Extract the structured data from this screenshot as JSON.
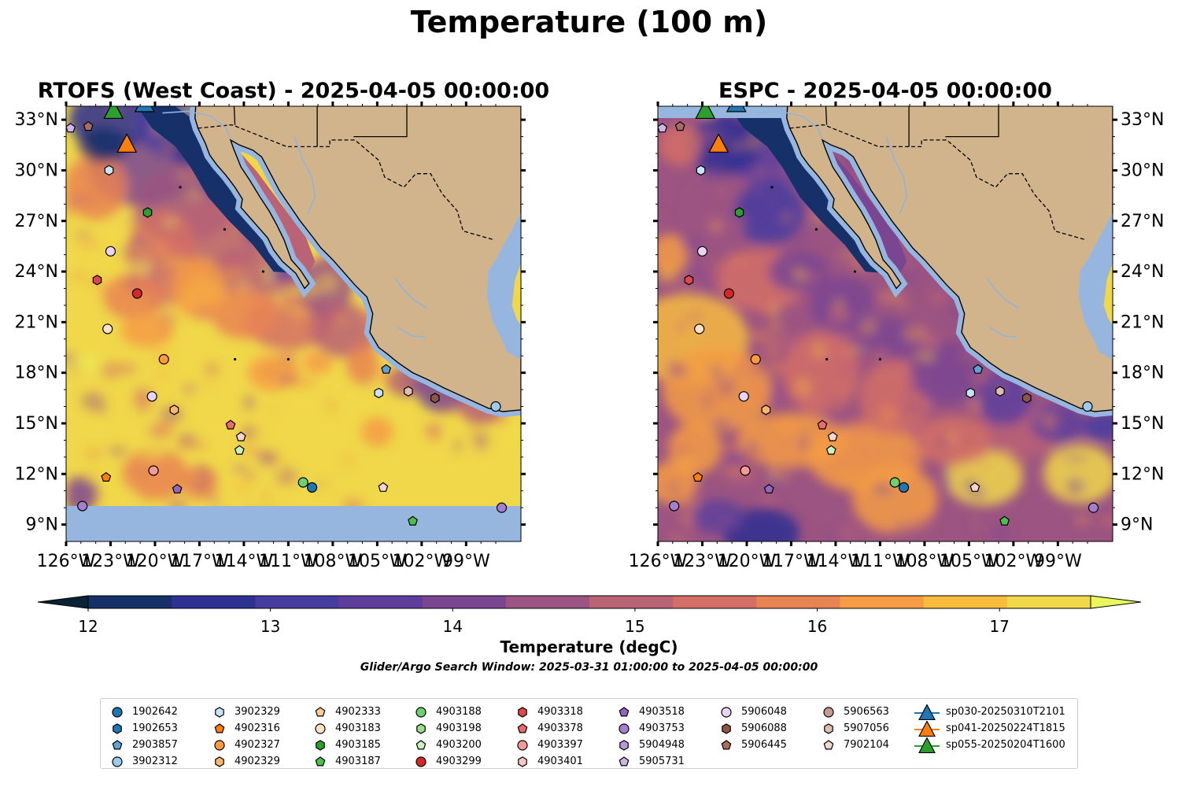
{
  "figure": {
    "title": "Temperature (100 m)"
  },
  "colors": {
    "land": "#d2b48c",
    "nodata": "#96b6e0",
    "rivers": "#8fb4dc",
    "colormap": [
      "#0a2236",
      "#16306a",
      "#2e3092",
      "#463ca0",
      "#5e3e9c",
      "#7a4692",
      "#9c5482",
      "#ba6276",
      "#d46e66",
      "#e98452",
      "#f59c44",
      "#f7bb3e",
      "#f0d84a",
      "#e9f75a"
    ]
  },
  "chart_data": [
    {
      "type": "heatmap",
      "title": "RTOFS (West Coast) - 2025-04-05 00:00:00",
      "xlim": [
        -126,
        -95.3
      ],
      "ylim": [
        8,
        33.8
      ],
      "xticks": [
        "126°W",
        "123°W",
        "120°W",
        "117°W",
        "114°W",
        "111°W",
        "108°W",
        "105°W",
        "102°W",
        "99°W"
      ],
      "yticks": [
        "9°N",
        "12°N",
        "15°N",
        "18°N",
        "21°N",
        "24°N",
        "27°N",
        "30°N",
        "33°N"
      ],
      "ytick_side": "left",
      "nodata_below_lat": 10.1,
      "field_note": "warm (>17) offshore south and west; cool (<13) band along Baja California and the California Current north; intermediate 14-16 near the coast",
      "markers": [
        {
          "id": "5906445",
          "lat": 32.6,
          "lon": -124.5
        },
        {
          "id": "5905731",
          "lat": 32.5,
          "lon": -125.7
        },
        {
          "id": "3902329",
          "lat": 30.0,
          "lon": -123.1
        },
        {
          "id": "4903185",
          "lat": 27.5,
          "lon": -120.5
        },
        {
          "id": "5906048",
          "lat": 25.2,
          "lon": -123.0
        },
        {
          "id": "4903318",
          "lat": 23.5,
          "lon": -123.9
        },
        {
          "id": "4903299",
          "lat": 22.7,
          "lon": -121.2
        },
        {
          "id": "4903183",
          "lat": 20.6,
          "lon": -123.2
        },
        {
          "id": "4902327",
          "lat": 18.8,
          "lon": -119.4
        },
        {
          "id": "5906048",
          "lat": 16.6,
          "lon": -120.2
        },
        {
          "id": "4902329",
          "lat": 15.8,
          "lon": -118.7
        },
        {
          "id": "4903378",
          "lat": 14.9,
          "lon": -114.9
        },
        {
          "id": "7902104",
          "lat": 14.2,
          "lon": -114.2
        },
        {
          "id": "4903200",
          "lat": 13.4,
          "lon": -114.3
        },
        {
          "id": "4902316",
          "lat": 11.8,
          "lon": -123.3
        },
        {
          "id": "4903397",
          "lat": 12.2,
          "lon": -120.1
        },
        {
          "id": "4903518",
          "lat": 11.1,
          "lon": -118.5
        },
        {
          "id": "4903753",
          "lat": 10.1,
          "lon": -124.9
        },
        {
          "id": "4903188",
          "lat": 11.5,
          "lon": -110.0
        },
        {
          "id": "1902642",
          "lat": 11.2,
          "lon": -109.4
        },
        {
          "id": "7902104",
          "lat": 11.2,
          "lon": -104.6
        },
        {
          "id": "4903187",
          "lat": 9.2,
          "lon": -102.6
        },
        {
          "id": "2903857",
          "lat": 18.2,
          "lon": -104.4
        },
        {
          "id": "3902329",
          "lat": 16.8,
          "lon": -104.9
        },
        {
          "id": "5907056",
          "lat": 16.9,
          "lon": -102.9
        },
        {
          "id": "5906088",
          "lat": 16.5,
          "lon": -101.1
        },
        {
          "id": "3902312",
          "lat": 16.0,
          "lon": -97.0
        },
        {
          "id": "4903753",
          "lat": 10.0,
          "lon": -96.6
        }
      ],
      "gliders": [
        {
          "id": "sp055-20250204T1600",
          "lat": 33.5,
          "lon": -122.8
        },
        {
          "id": "sp030-20250310T2101",
          "lat": 33.9,
          "lon": -120.7
        },
        {
          "id": "sp041-20250224T1815",
          "lat": 31.5,
          "lon": -121.9
        }
      ]
    },
    {
      "type": "heatmap",
      "title": "ESPC - 2025-04-05 00:00:00",
      "xlim": [
        -126,
        -95.3
      ],
      "ylim": [
        8,
        33.8
      ],
      "xticks": [
        "126°W",
        "123°W",
        "120°W",
        "117°W",
        "114°W",
        "111°W",
        "108°W",
        "105°W",
        "102°W",
        "99°W"
      ],
      "yticks": [
        "9°N",
        "12°N",
        "15°N",
        "18°N",
        "21°N",
        "24°N",
        "27°N",
        "30°N",
        "33°N"
      ],
      "ytick_side": "right",
      "nodata_above_lat": 33.1,
      "field_note": "cooler overall; broad 14-15 purple band along coast and offshore; warm (>17) patches in southwest and west; cold (<12.5) along Baja and a cold spot near 9°N 118°W",
      "markers": "same as RTOFS panel",
      "gliders": "same as RTOFS panel"
    }
  ],
  "colorbar": {
    "ticks": [
      "12",
      "13",
      "14",
      "15",
      "16",
      "17"
    ],
    "min": 12,
    "max": 17.5,
    "step": 0.5,
    "extend": "both",
    "label": "Temperature (degC)",
    "subtitle": "Glider/Argo Search Window: 2025-03-31 01:00:00 to 2025-04-05 00:00:00"
  },
  "legend": {
    "columns": [
      [
        {
          "label": "1902642",
          "shape": "circle",
          "color": "#1f77b4"
        },
        {
          "label": "1902653",
          "shape": "hexagon",
          "color": "#1f77b4"
        },
        {
          "label": "2903857",
          "shape": "pentagon",
          "color": "#5fa2d6"
        },
        {
          "label": "3902312",
          "shape": "circle",
          "color": "#9ccbee"
        }
      ],
      [
        {
          "label": "3902329",
          "shape": "hexagon",
          "color": "#c5e4f7"
        },
        {
          "label": "4902316",
          "shape": "pentagon",
          "color": "#ff7f0e"
        },
        {
          "label": "4902327",
          "shape": "circle",
          "color": "#ff9a3c"
        },
        {
          "label": "4902329",
          "shape": "hexagon",
          "color": "#ffb56b"
        }
      ],
      [
        {
          "label": "4902333",
          "shape": "pentagon",
          "color": "#ffcd9a"
        },
        {
          "label": "4903183",
          "shape": "circle",
          "color": "#ffe2c4"
        },
        {
          "label": "4903185",
          "shape": "hexagon",
          "color": "#2ca02c"
        },
        {
          "label": "4903187",
          "shape": "pentagon",
          "color": "#4cbf4c"
        }
      ],
      [
        {
          "label": "4903188",
          "shape": "circle",
          "color": "#6fd06f"
        },
        {
          "label": "4903198",
          "shape": "hexagon",
          "color": "#98df8a"
        },
        {
          "label": "4903200",
          "shape": "pentagon",
          "color": "#c7f2bf"
        },
        {
          "label": "4903299",
          "shape": "circle",
          "color": "#d62728"
        }
      ],
      [
        {
          "label": "4903318",
          "shape": "hexagon",
          "color": "#e0474a"
        },
        {
          "label": "4903378",
          "shape": "pentagon",
          "color": "#ec6a6c"
        },
        {
          "label": "4903397",
          "shape": "circle",
          "color": "#f5999a"
        },
        {
          "label": "4903401",
          "shape": "hexagon",
          "color": "#fbc6c6"
        }
      ],
      [
        {
          "label": "4903518",
          "shape": "pentagon",
          "color": "#9467bd"
        },
        {
          "label": "4903753",
          "shape": "circle",
          "color": "#a57fce"
        },
        {
          "label": "5904948",
          "shape": "hexagon",
          "color": "#b99ad9"
        },
        {
          "label": "5905731",
          "shape": "pentagon",
          "color": "#cfb6e8"
        }
      ],
      [
        {
          "label": "5906048",
          "shape": "circle",
          "color": "#e7d4f7"
        },
        {
          "label": "5906088",
          "shape": "hexagon",
          "color": "#8c564b"
        },
        {
          "label": "5906445",
          "shape": "pentagon",
          "color": "#a66e62"
        }
      ],
      [
        {
          "label": "5906563",
          "shape": "circle",
          "color": "#c49c90"
        },
        {
          "label": "5907056",
          "shape": "hexagon",
          "color": "#e0bdb0"
        },
        {
          "label": "7902104",
          "shape": "pentagon",
          "color": "#f5d6cc"
        }
      ],
      [
        {
          "label": "sp030-20250310T2101",
          "shape": "triangle",
          "color": "#1f77b4"
        },
        {
          "label": "sp041-20250224T1815",
          "shape": "triangle",
          "color": "#ff7f0e"
        },
        {
          "label": "sp055-20250204T1600",
          "shape": "triangle",
          "color": "#2ca02c"
        }
      ]
    ]
  }
}
